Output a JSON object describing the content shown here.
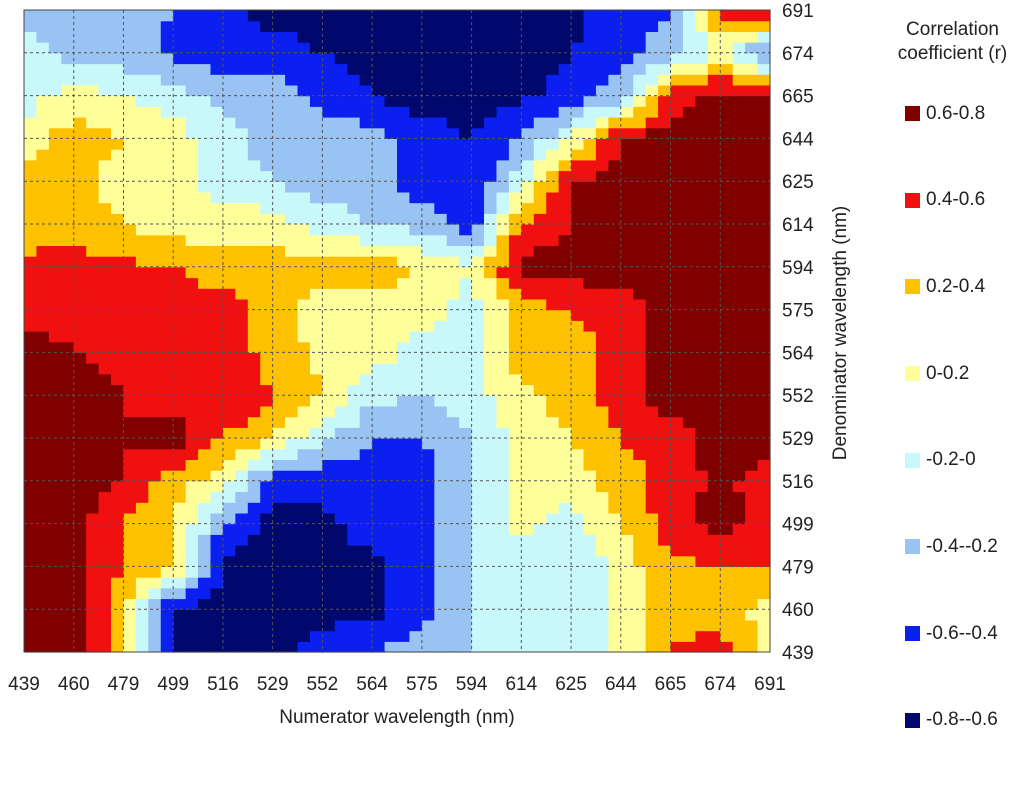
{
  "chart_data": {
    "type": "heatmap",
    "title": "",
    "xlabel": "Numerator wavelength (nm)",
    "ylabel": "Denominator wavelength (nm)",
    "x": [
      439,
      460,
      479,
      499,
      516,
      529,
      552,
      564,
      575,
      594,
      614,
      625,
      644,
      665,
      674,
      691
    ],
    "y": [
      439,
      460,
      479,
      499,
      516,
      529,
      552,
      564,
      575,
      594,
      614,
      625,
      644,
      665,
      674,
      691
    ],
    "z": [
      [
        0.7,
        0.75,
        0.3,
        -0.65,
        -0.7,
        -0.7,
        -0.5,
        -0.4,
        -0.3,
        -0.2,
        -0.1,
        -0.1,
        0.05,
        0.4,
        0.5,
        0.1
      ],
      [
        0.7,
        0.75,
        0.25,
        -0.65,
        -0.7,
        -0.7,
        -0.7,
        -0.65,
        -0.5,
        -0.2,
        -0.1,
        -0.2,
        0.1,
        0.35,
        0.3,
        0.1
      ],
      [
        0.75,
        0.7,
        0.4,
        0.2,
        -0.65,
        -0.7,
        -0.7,
        -0.65,
        -0.5,
        -0.2,
        -0.1,
        -0.2,
        0.1,
        0.35,
        0.4,
        0.4
      ],
      [
        0.65,
        0.7,
        0.4,
        0.2,
        -0.4,
        -0.7,
        -0.65,
        -0.5,
        -0.5,
        -0.2,
        0.05,
        -0.1,
        0.2,
        0.5,
        0.7,
        0.5
      ],
      [
        0.7,
        0.7,
        0.6,
        0.3,
        0.1,
        -0.5,
        -0.55,
        -0.5,
        -0.5,
        -0.2,
        0.1,
        0.1,
        0.3,
        0.5,
        0.65,
        0.5
      ],
      [
        0.7,
        0.7,
        0.6,
        0.7,
        0.4,
        0.2,
        -0.15,
        -0.4,
        -0.4,
        -0.2,
        0.1,
        0.2,
        0.4,
        0.5,
        0.7,
        0.7
      ],
      [
        0.7,
        0.7,
        0.6,
        0.5,
        0.6,
        0.4,
        0.2,
        -0.15,
        -0.2,
        -0.1,
        0.15,
        0.3,
        0.5,
        0.7,
        0.75,
        0.7
      ],
      [
        0.7,
        0.6,
        0.55,
        0.5,
        0.55,
        0.3,
        0.15,
        0.1,
        -0.1,
        -0.1,
        0.3,
        0.3,
        0.5,
        0.7,
        0.75,
        0.7
      ],
      [
        0.5,
        0.55,
        0.6,
        0.5,
        0.5,
        0.3,
        0.1,
        0.1,
        0.1,
        -0.1,
        0.3,
        0.4,
        0.5,
        0.7,
        0.75,
        0.7
      ],
      [
        0.45,
        0.5,
        0.45,
        0.4,
        0.3,
        0.3,
        0.3,
        0.3,
        0.2,
        0.0,
        0.7,
        0.7,
        0.7,
        0.7,
        0.75,
        0.75
      ],
      [
        0.3,
        0.3,
        0.2,
        0.1,
        0.1,
        0.1,
        -0.1,
        -0.2,
        -0.3,
        -0.5,
        0.4,
        0.6,
        0.7,
        0.7,
        0.75,
        0.7
      ],
      [
        0.3,
        0.3,
        0.1,
        0.1,
        -0.1,
        -0.2,
        -0.3,
        -0.3,
        -0.5,
        -0.6,
        -0.1,
        0.6,
        0.7,
        0.7,
        0.75,
        0.7
      ],
      [
        0.1,
        0.3,
        0.2,
        0.1,
        -0.1,
        -0.3,
        -0.3,
        -0.3,
        -0.5,
        -0.6,
        -0.4,
        0.0,
        0.6,
        0.7,
        0.75,
        0.7
      ],
      [
        -0.1,
        0.1,
        0.0,
        -0.1,
        -0.3,
        -0.3,
        -0.45,
        -0.6,
        -0.7,
        -0.7,
        -0.65,
        -0.5,
        -0.3,
        0.5,
        0.7,
        0.65
      ],
      [
        -0.1,
        -0.3,
        -0.3,
        -0.45,
        -0.5,
        -0.5,
        -0.6,
        -0.7,
        -0.7,
        -0.7,
        -0.7,
        -0.6,
        -0.5,
        -0.3,
        0.0,
        -0.5
      ],
      [
        -0.3,
        -0.3,
        -0.3,
        -0.4,
        -0.55,
        -0.7,
        -0.7,
        -0.7,
        -0.7,
        -0.7,
        -0.7,
        -0.65,
        -0.5,
        -0.4,
        0.5,
        0.6
      ]
    ],
    "legend": {
      "title_lines": [
        "Correlation",
        "coefficient (r)"
      ],
      "position": "right",
      "bins": [
        {
          "label": "0.6-0.8",
          "min": 0.6,
          "max": 0.8,
          "color": "#800000"
        },
        {
          "label": "0.4-0.6",
          "min": 0.4,
          "max": 0.6,
          "color": "#f01010"
        },
        {
          "label": "0.2-0.4",
          "min": 0.2,
          "max": 0.4,
          "color": "#fec100"
        },
        {
          "label": "0-0.2",
          "min": 0.0,
          "max": 0.2,
          "color": "#ffff9a"
        },
        {
          "label": "-0.2-0",
          "min": -0.2,
          "max": 0.0,
          "color": "#c8f8fa"
        },
        {
          "label": "-0.4--0.2",
          "min": -0.4,
          "max": -0.2,
          "color": "#98c3f3"
        },
        {
          "label": "-0.6--0.4",
          "min": -0.6,
          "max": -0.4,
          "color": "#0a1ff0"
        },
        {
          "label": "-0.8--0.6",
          "min": -0.8,
          "max": -0.6,
          "color": "#00086e"
        }
      ]
    },
    "grid": true,
    "grid_style": "dotted"
  }
}
